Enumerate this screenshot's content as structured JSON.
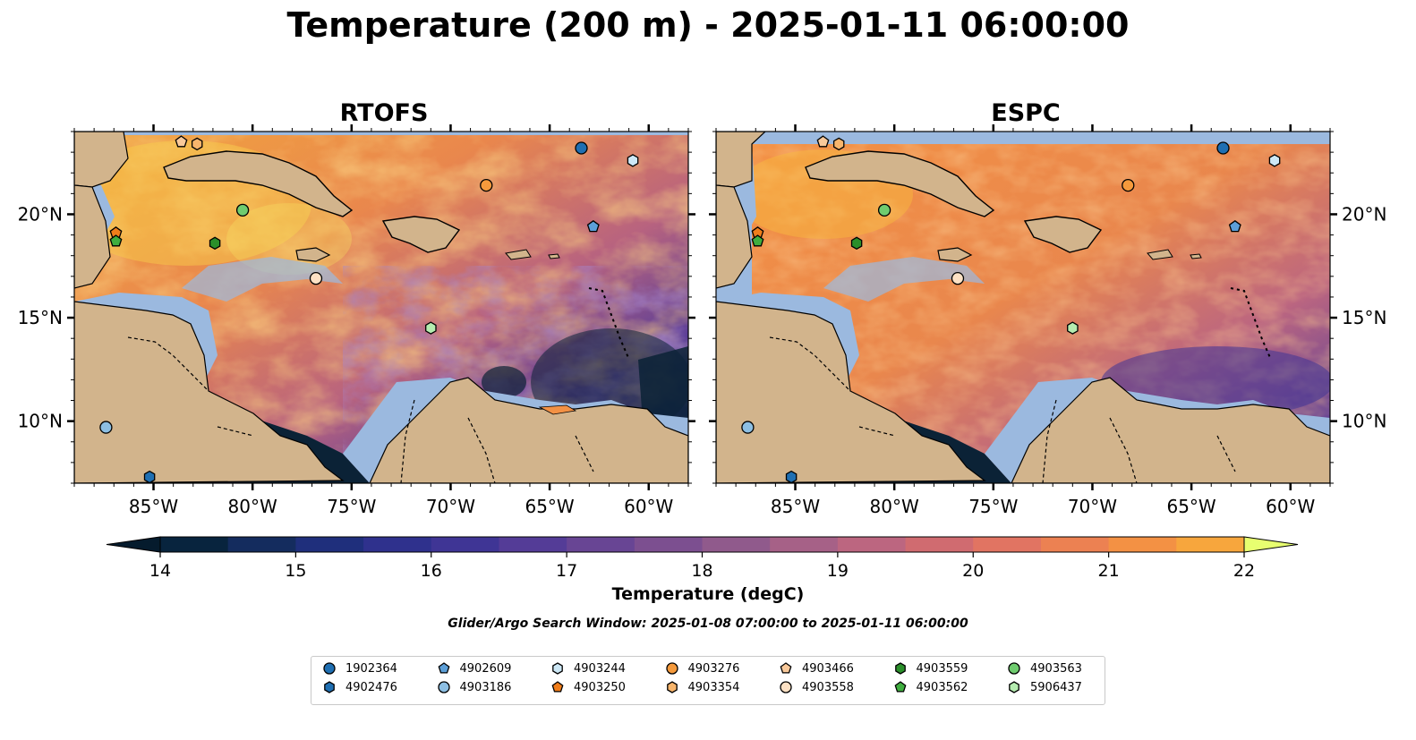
{
  "title": "Temperature (200 m) - 2025-01-11 06:00:00",
  "panels": [
    {
      "title": "RTOFS"
    },
    {
      "title": "ESPC"
    }
  ],
  "axes": {
    "lon_ticks": [
      "85°W",
      "80°W",
      "75°W",
      "70°W",
      "65°W",
      "60°W"
    ],
    "lat_ticks": [
      "20°N",
      "15°N",
      "10°N"
    ],
    "lon_range": [
      -89,
      -58
    ],
    "lat_range": [
      7,
      24
    ]
  },
  "colorbar": {
    "label": "Temperature (degC)",
    "min": 14,
    "max": 22,
    "ticks": [
      "14",
      "15",
      "16",
      "17",
      "18",
      "19",
      "20",
      "21",
      "22"
    ],
    "step": 0.5,
    "colors": [
      "#08243e",
      "#142c5e",
      "#1f2f7c",
      "#2f318d",
      "#3f3595",
      "#543c97",
      "#684594",
      "#7c4f90",
      "#905a8c",
      "#a66187",
      "#bc6680",
      "#d06b70",
      "#e17462",
      "#ec8152",
      "#f39144",
      "#f7a63d",
      "#f8bc3f",
      "#f5d54c",
      "#eef26a"
    ],
    "extend": "both",
    "under_color": "#051b2d",
    "over_color": "#e8ff70"
  },
  "search_window": "Glider/Argo Search Window: 2025-01-08 07:00:00 to 2025-01-11 06:00:00",
  "colors": {
    "land": "#d2b48c",
    "shelf": "#9bb9df",
    "deep_cold": "#0b2236"
  },
  "floats": [
    {
      "id": "1902364",
      "marker": "circle",
      "color": "#1f6fb2",
      "lon": -63.4,
      "lat": 23.2
    },
    {
      "id": "4902476",
      "marker": "hexagon",
      "color": "#1f6fb2",
      "lon": -85.2,
      "lat": 7.3
    },
    {
      "id": "4902609",
      "marker": "pentagon",
      "color": "#5c9fd8",
      "lon": -62.8,
      "lat": 19.4
    },
    {
      "id": "4903186",
      "marker": "circle",
      "color": "#8dbfe3",
      "lon": -87.4,
      "lat": 9.7
    },
    {
      "id": "4903244",
      "marker": "hexagon",
      "color": "#cde8f6",
      "lon": -60.8,
      "lat": 22.6
    },
    {
      "id": "4903250",
      "marker": "pentagon",
      "color": "#f07d1a",
      "lon": -86.9,
      "lat": 19.1
    },
    {
      "id": "4903276",
      "marker": "circle",
      "color": "#f59a3c",
      "lon": -68.2,
      "lat": 21.4
    },
    {
      "id": "4903354",
      "marker": "hexagon",
      "color": "#f8b56c",
      "lon": -82.8,
      "lat": 23.4
    },
    {
      "id": "4903466",
      "marker": "pentagon",
      "color": "#f9c99a",
      "lon": -83.6,
      "lat": 23.5
    },
    {
      "id": "4903558",
      "marker": "circle",
      "color": "#fde1c4",
      "lon": -76.8,
      "lat": 16.9
    },
    {
      "id": "4903559",
      "marker": "hexagon",
      "color": "#2a8f2a",
      "lon": -81.9,
      "lat": 18.6
    },
    {
      "id": "4903562",
      "marker": "pentagon",
      "color": "#3fae3f",
      "lon": -86.9,
      "lat": 18.7
    },
    {
      "id": "4903563",
      "marker": "circle",
      "color": "#6fcc6f",
      "lon": -80.5,
      "lat": 20.2
    },
    {
      "id": "5906437",
      "marker": "hexagon",
      "color": "#b5ecb0",
      "lon": -71.0,
      "lat": 14.5
    }
  ]
}
